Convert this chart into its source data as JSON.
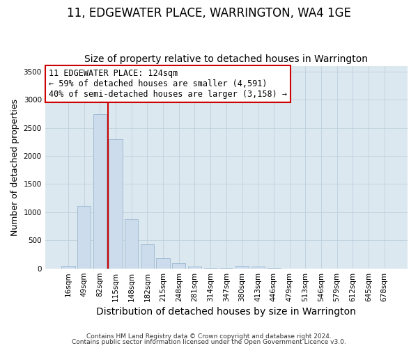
{
  "title": "11, EDGEWATER PLACE, WARRINGTON, WA4 1GE",
  "subtitle": "Size of property relative to detached houses in Warrington",
  "xlabel": "Distribution of detached houses by size in Warrington",
  "ylabel": "Number of detached properties",
  "bar_labels": [
    "16sqm",
    "49sqm",
    "82sqm",
    "115sqm",
    "148sqm",
    "182sqm",
    "215sqm",
    "248sqm",
    "281sqm",
    "314sqm",
    "347sqm",
    "380sqm",
    "413sqm",
    "446sqm",
    "479sqm",
    "513sqm",
    "546sqm",
    "579sqm",
    "612sqm",
    "645sqm",
    "678sqm"
  ],
  "bar_values": [
    45,
    1110,
    2740,
    2300,
    880,
    430,
    185,
    95,
    30,
    10,
    5,
    40,
    30,
    10,
    2,
    1,
    0,
    0,
    0,
    0,
    0
  ],
  "bar_color": "#ccdcec",
  "bar_edgecolor": "#9ab8d0",
  "vline_color": "#cc0000",
  "annotation_text": "11 EDGEWATER PLACE: 124sqm\n← 59% of detached houses are smaller (4,591)\n40% of semi-detached houses are larger (3,158) →",
  "annotation_box_edgecolor": "#cc0000",
  "annotation_box_facecolor": "#ffffff",
  "ylim": [
    0,
    3600
  ],
  "footer1": "Contains HM Land Registry data © Crown copyright and database right 2024.",
  "footer2": "Contains public sector information licensed under the Open Government Licence v3.0.",
  "bg_color": "#ffffff",
  "plot_bg_color": "#dce8f0",
  "title_fontsize": 12,
  "subtitle_fontsize": 10,
  "tick_fontsize": 7.5,
  "ylabel_fontsize": 9,
  "xlabel_fontsize": 10,
  "footer_fontsize": 6.5
}
